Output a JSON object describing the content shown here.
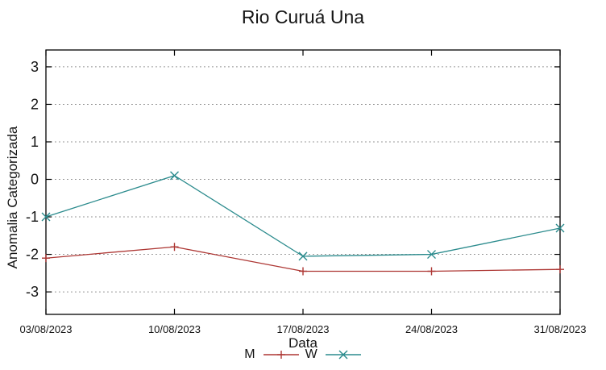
{
  "chart_data": {
    "type": "line",
    "title": "Rio Curuá Una",
    "xlabel": "Data",
    "ylabel": "Anomalia Categorizada",
    "categories": [
      "03/08/2023",
      "10/08/2023",
      "17/08/2023",
      "24/08/2023",
      "31/08/2023"
    ],
    "series": [
      {
        "name": "M",
        "color": "#ad3633",
        "marker": "plus",
        "values": [
          -2.1,
          -1.8,
          -2.45,
          -2.45,
          -2.4
        ]
      },
      {
        "name": "W",
        "color": "#2b8b8d",
        "marker": "cross",
        "values": [
          -1.0,
          0.1,
          -2.05,
          -2.0,
          -1.3
        ]
      }
    ],
    "yticks": [
      -3,
      -2,
      -1,
      0,
      1,
      2,
      3
    ],
    "ylim": [
      -3.6,
      3.45
    ],
    "grid": "dotted horizontal gridlines at integer y values",
    "legend_position": "bottom-center",
    "colors": {
      "grid": "#909090",
      "border": "#000000",
      "background": "#ffffff",
      "text": "#141414"
    }
  }
}
